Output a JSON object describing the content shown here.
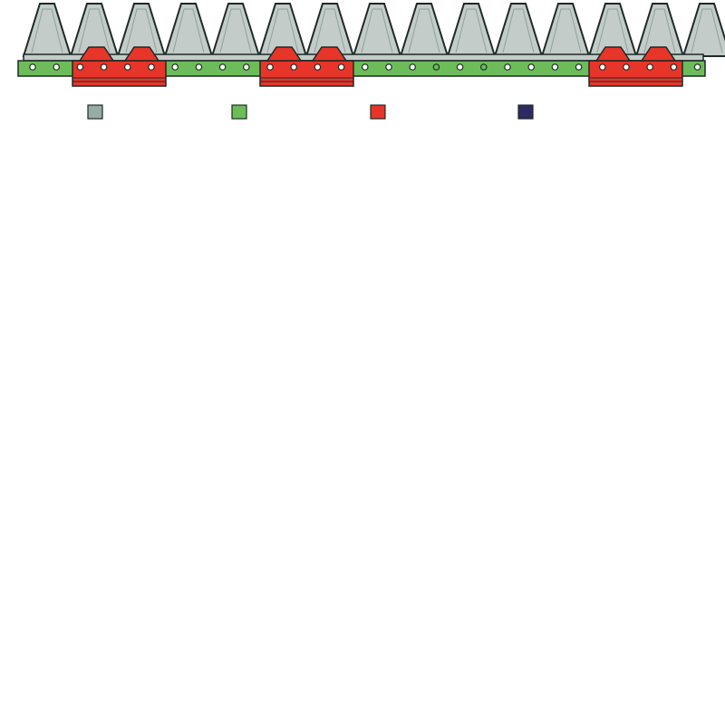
{
  "legend": {
    "swatches": [
      {
        "color": "#98aca6"
      },
      {
        "color": "#6cbd5a"
      },
      {
        "color": "#e8352a"
      },
      {
        "color": "#2e2a63"
      }
    ]
  }
}
